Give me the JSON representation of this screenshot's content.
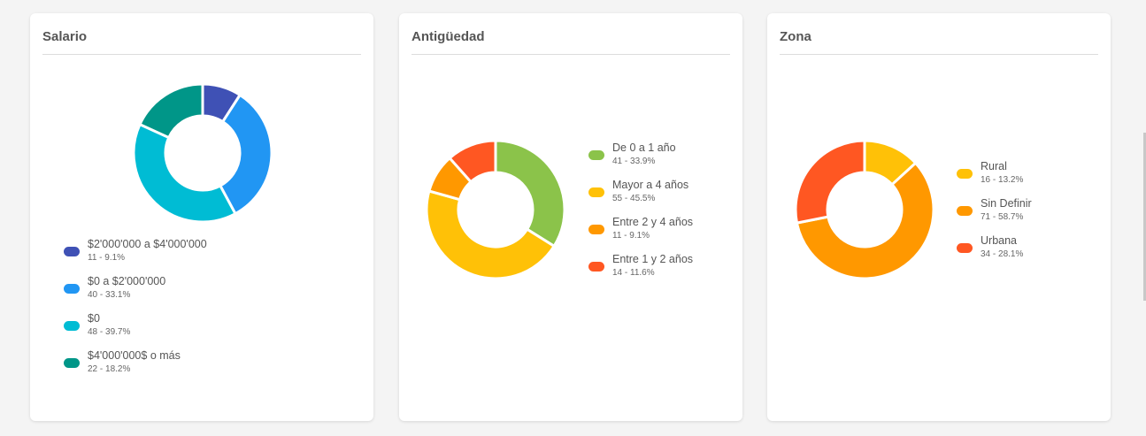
{
  "chart_data": [
    {
      "type": "pie",
      "title": "Salario",
      "slices": [
        {
          "label": "$2'000'000 a $4'000'000",
          "count": 11,
          "display": "11 - 9.1%",
          "color": "#3f51b5"
        },
        {
          "label": "$0 a $2'000'000",
          "count": 40,
          "display": "40 - 33.1%",
          "color": "#2196f3"
        },
        {
          "label": "$0",
          "count": 48,
          "display": "48 - 39.7%",
          "color": "#00bcd4"
        },
        {
          "label": "$4'000'000$ o más",
          "count": 22,
          "display": "22 - 18.2%",
          "color": "#009688"
        }
      ],
      "legend_position": "bottom"
    },
    {
      "type": "pie",
      "title": "Antigüedad",
      "slices": [
        {
          "label": "De 0 a 1 año",
          "count": 41,
          "display": "41 - 33.9%",
          "color": "#8bc34a"
        },
        {
          "label": "Mayor a 4 años",
          "count": 55,
          "display": "55 - 45.5%",
          "color": "#ffc107"
        },
        {
          "label": "Entre 2 y 4 años",
          "count": 11,
          "display": "11 - 9.1%",
          "color": "#ff9800"
        },
        {
          "label": "Entre 1 y 2 años",
          "count": 14,
          "display": "14 - 11.6%",
          "color": "#ff5722"
        }
      ],
      "legend_position": "right"
    },
    {
      "type": "pie",
      "title": "Zona",
      "slices": [
        {
          "label": "Rural",
          "count": 16,
          "display": "16 - 13.2%",
          "color": "#ffc107"
        },
        {
          "label": "Sin Definir",
          "count": 71,
          "display": "71 - 58.7%",
          "color": "#ff9800"
        },
        {
          "label": "Urbana",
          "count": 34,
          "display": "34 - 28.1%",
          "color": "#ff5722"
        }
      ],
      "legend_position": "right"
    }
  ]
}
